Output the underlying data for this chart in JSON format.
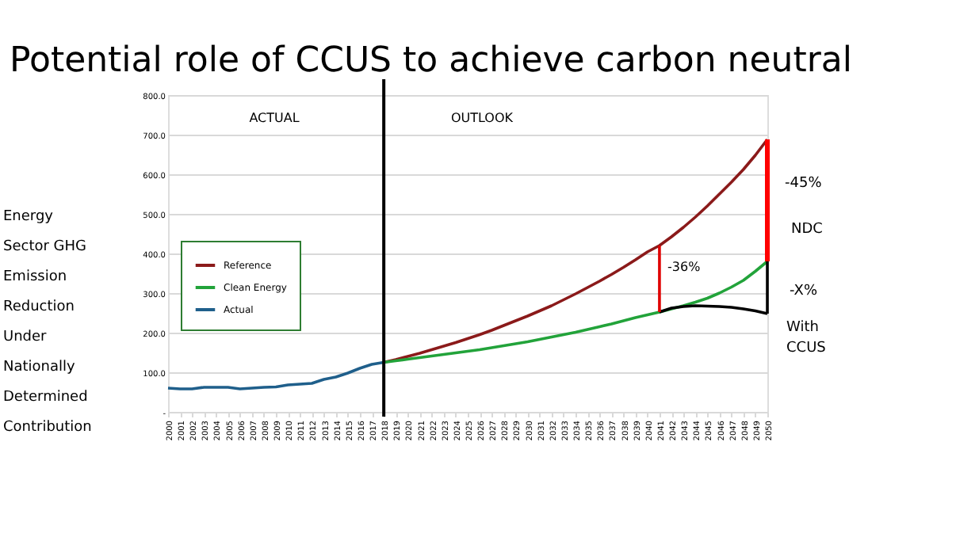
{
  "chart_data": {
    "type": "line",
    "title": "Potential role of CCUS to achieve carbon neutral",
    "ylabel": "Energy Sector GHG Emission Reduction Under Nationally Determined Contribution",
    "x": [
      2000,
      2001,
      2002,
      2003,
      2004,
      2005,
      2006,
      2007,
      2008,
      2009,
      2010,
      2011,
      2012,
      2013,
      2014,
      2015,
      2016,
      2017,
      2018,
      2019,
      2020,
      2021,
      2022,
      2023,
      2024,
      2025,
      2026,
      2027,
      2028,
      2029,
      2030,
      2031,
      2032,
      2033,
      2034,
      2035,
      2036,
      2037,
      2038,
      2039,
      2040,
      2041,
      2042,
      2043,
      2044,
      2045,
      2046,
      2047,
      2048,
      2049,
      2050
    ],
    "series": [
      {
        "name": "Reference",
        "color": "#8b1a1a",
        "values": [
          null,
          null,
          null,
          null,
          null,
          null,
          null,
          null,
          null,
          null,
          null,
          null,
          null,
          null,
          null,
          null,
          null,
          null,
          125,
          132,
          140,
          148,
          157,
          166,
          175,
          185,
          195,
          206,
          218,
          230,
          242,
          255,
          268,
          283,
          298,
          314,
          330,
          347,
          365,
          384,
          404,
          420,
          442,
          466,
          492,
          520,
          550,
          580,
          612,
          648,
          688
        ]
      },
      {
        "name": "Clean Energy",
        "color": "#22a33a",
        "values": [
          null,
          null,
          null,
          null,
          null,
          null,
          null,
          null,
          null,
          null,
          null,
          null,
          null,
          null,
          null,
          null,
          null,
          null,
          125,
          129,
          133,
          137,
          141,
          145,
          149,
          153,
          157,
          162,
          167,
          172,
          177,
          183,
          189,
          195,
          201,
          208,
          215,
          222,
          230,
          238,
          245,
          252,
          260,
          268,
          277,
          287,
          300,
          315,
          332,
          355,
          380
        ]
      },
      {
        "name": "Actual",
        "color": "#1f5f8b",
        "values": [
          60,
          58,
          58,
          62,
          62,
          62,
          58,
          60,
          62,
          63,
          68,
          70,
          72,
          82,
          88,
          98,
          110,
          120,
          125,
          null,
          null,
          null,
          null,
          null,
          null,
          null,
          null,
          null,
          null,
          null,
          null,
          null,
          null,
          null,
          null,
          null,
          null,
          null,
          null,
          null,
          null,
          null,
          null,
          null,
          null,
          null,
          null,
          null,
          null,
          null,
          null
        ]
      },
      {
        "color": "#000000",
        "x": [
          2041,
          2042,
          2043,
          2044,
          2045,
          2046,
          2047,
          2048,
          2049,
          2050
        ],
        "values": [
          252,
          262,
          266,
          268,
          267,
          266,
          264,
          260,
          255,
          248
        ]
      },
      {
        "color": "#e00000",
        "x": [
          2041,
          2041
        ],
        "values": [
          420,
          252
        ]
      },
      {
        "color": "#ff0000",
        "x": [
          2050,
          2050
        ],
        "values": [
          688,
          380
        ]
      },
      {
        "color": "#000000",
        "x": [
          2050,
          2050
        ],
        "values": [
          380,
          248
        ]
      }
    ],
    "xlim": [
      2000,
      2050
    ],
    "xticks": [
      2000,
      2001,
      2002,
      2003,
      2004,
      2005,
      2006,
      2007,
      2008,
      2009,
      2010,
      2011,
      2012,
      2013,
      2014,
      2015,
      2016,
      2017,
      2018,
      2019,
      2020,
      2021,
      2022,
      2023,
      2024,
      2025,
      2026,
      2027,
      2028,
      2029,
      2030,
      2031,
      2032,
      2033,
      2034,
      2035,
      2036,
      2037,
      2038,
      2039,
      2040,
      2041,
      2042,
      2043,
      2044,
      2045,
      2046,
      2047,
      2048,
      2049,
      2050
    ],
    "ylim": [
      0,
      800
    ],
    "yticks": [
      {
        "value": 0,
        "label": "-"
      },
      {
        "value": 100,
        "label": "100.0"
      },
      {
        "value": 200,
        "label": "200.0"
      },
      {
        "value": 300,
        "label": "300.0"
      },
      {
        "value": 400,
        "label": "400.0"
      },
      {
        "value": 500,
        "label": "500.0"
      },
      {
        "value": 600,
        "label": "600.0"
      },
      {
        "value": 700,
        "label": "700.0"
      },
      {
        "value": 800,
        "label": "800.0"
      }
    ],
    "grid": "y",
    "legend": "left",
    "ref_lines": [
      {
        "axis": "x",
        "value": 2018,
        "color": "#000000"
      }
    ],
    "annotations": [
      "ACTUAL",
      "OUTLOOK",
      "-36%",
      "-45%",
      "NDC",
      "-X%",
      "With CCUS"
    ]
  }
}
